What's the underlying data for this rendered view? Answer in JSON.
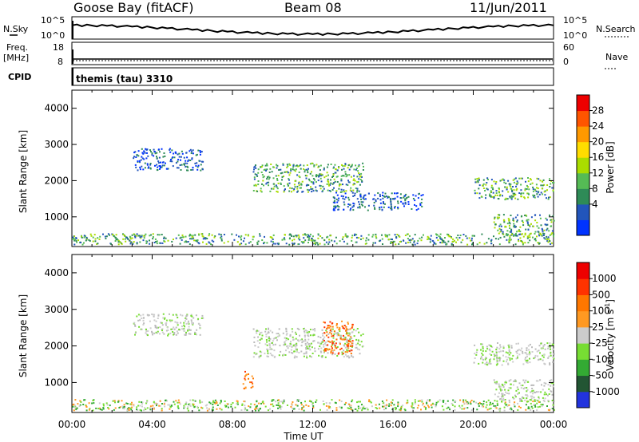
{
  "header": {
    "station": "Goose Bay (fitACF)",
    "beam": "Beam 08",
    "date": "11/Jun/2011"
  },
  "top_panels": {
    "nsky_label": "N.Sky",
    "nsky_ticks": [
      "10^5",
      "10^0"
    ],
    "nsearch_label": "N.Search",
    "nsearch_ticks": [
      "10^5",
      "10^0"
    ],
    "freq_label": "Freq.",
    "freq_unit": "[MHz]",
    "freq_ticks": [
      "18",
      "8"
    ],
    "nave_label": "Nave",
    "nave_ticks": [
      "60",
      "0"
    ],
    "cpid_label": "CPID",
    "cpid_text": "themis (tau) 3310"
  },
  "chart_data": [
    {
      "type": "heatmap",
      "name": "power",
      "ylabel": "Slant Range [km]",
      "xlabel": "",
      "yticks": [
        1000,
        2000,
        3000,
        4000
      ],
      "ylim": [
        180,
        4500
      ],
      "xlim_hours": [
        0,
        24
      ],
      "colorbar": {
        "label": "Power [dB]",
        "ticks": [
          "28",
          "24",
          "20",
          "16",
          "12",
          "8",
          "4"
        ],
        "colors": [
          "#0033ff",
          "#2255bb",
          "#2e8b57",
          "#55bb55",
          "#aadd00",
          "#ffdd00",
          "#ff9900",
          "#ff5500",
          "#ee0000"
        ]
      },
      "echo_bands": [
        {
          "t": [
            0.0,
            24.0
          ],
          "r": [
            250,
            550
          ],
          "dominant": "green"
        },
        {
          "t": [
            3.0,
            6.5
          ],
          "r": [
            2300,
            2900
          ],
          "dominant": "blue"
        },
        {
          "t": [
            9.0,
            14.5
          ],
          "r": [
            1700,
            2500
          ],
          "dominant": "green"
        },
        {
          "t": [
            13.0,
            17.5
          ],
          "r": [
            1200,
            1700
          ],
          "dominant": "blue"
        },
        {
          "t": [
            20.0,
            24.0
          ],
          "r": [
            1500,
            2100
          ],
          "dominant": "green"
        },
        {
          "t": [
            21.0,
            24.0
          ],
          "r": [
            500,
            1100
          ],
          "dominant": "green"
        }
      ]
    },
    {
      "type": "heatmap",
      "name": "velocity",
      "ylabel": "Slant Range [km]",
      "xlabel": "Time UT",
      "xticks": [
        "00:00",
        "04:00",
        "08:00",
        "12:00",
        "16:00",
        "20:00",
        "00:00"
      ],
      "yticks": [
        1000,
        2000,
        3000,
        4000
      ],
      "ylim": [
        180,
        4500
      ],
      "xlim_hours": [
        0,
        24
      ],
      "colorbar": {
        "label": "Velocity [m s",
        "label_sup": "-1",
        "label_close": "]",
        "ticks": [
          "1000",
          "500",
          "100",
          "25",
          "-25",
          "-100",
          "-500",
          "-1000"
        ],
        "colors": [
          "#2233dd",
          "#225533",
          "#33aa33",
          "#77dd33",
          "#cccccc",
          "#ff9922",
          "#ff7700",
          "#ff3300",
          "#ee0000"
        ]
      },
      "echo_bands": [
        {
          "t": [
            0.0,
            24.0
          ],
          "r": [
            250,
            550
          ],
          "dominant": "green"
        },
        {
          "t": [
            3.0,
            6.5
          ],
          "r": [
            2300,
            2900
          ],
          "dominant": "gray"
        },
        {
          "t": [
            9.0,
            14.5
          ],
          "r": [
            1700,
            2500
          ],
          "dominant": "gray"
        },
        {
          "t": [
            12.5,
            14.0
          ],
          "r": [
            1800,
            2700
          ],
          "dominant": "orange"
        },
        {
          "t": [
            8.5,
            9.0
          ],
          "r": [
            850,
            1350
          ],
          "dominant": "orange"
        },
        {
          "t": [
            20.0,
            24.0
          ],
          "r": [
            1500,
            2100
          ],
          "dominant": "gray"
        },
        {
          "t": [
            21.0,
            24.0
          ],
          "r": [
            500,
            1100
          ],
          "dominant": "gray"
        }
      ]
    }
  ]
}
